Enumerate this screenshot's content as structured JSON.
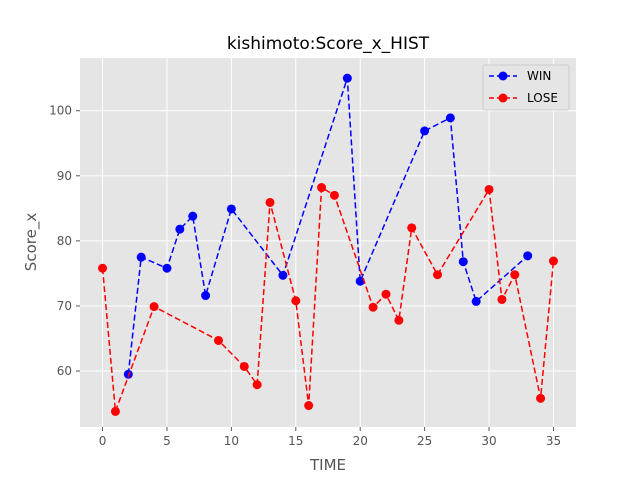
{
  "chart_data": {
    "type": "line",
    "title": "kishimoto:Score_x_HIST",
    "xlabel": "TIME",
    "ylabel": "Score_x",
    "xlim": [
      -1.75,
      36.75
    ],
    "ylim": [
      51.4,
      108.1
    ],
    "xticks": [
      0,
      5,
      10,
      15,
      20,
      25,
      30,
      35
    ],
    "yticks": [
      60,
      70,
      80,
      90,
      100
    ],
    "grid": true,
    "legend_position": "top-right",
    "style": "ggplot",
    "series": [
      {
        "name": "WIN",
        "color": "#0000ff",
        "line_style": "dashed",
        "marker": "circle",
        "x": [
          2,
          3,
          5,
          6,
          7,
          8,
          10,
          14,
          19,
          20,
          25,
          27,
          28,
          29,
          33
        ],
        "y": [
          59.5,
          77.5,
          75.8,
          81.8,
          83.8,
          71.6,
          84.9,
          74.7,
          105.0,
          73.8,
          96.9,
          98.9,
          76.8,
          70.7,
          77.7
        ]
      },
      {
        "name": "LOSE",
        "color": "#ff0000",
        "line_style": "dashed",
        "marker": "circle",
        "x": [
          0,
          1,
          4,
          9,
          11,
          12,
          13,
          15,
          16,
          17,
          18,
          21,
          22,
          23,
          24,
          26,
          30,
          31,
          32,
          34,
          35
        ],
        "y": [
          75.8,
          53.8,
          69.9,
          64.7,
          60.7,
          57.9,
          85.9,
          70.8,
          54.7,
          88.2,
          87.0,
          69.8,
          71.8,
          67.8,
          82.0,
          74.8,
          87.9,
          71.0,
          74.8,
          55.8,
          76.9
        ]
      }
    ]
  }
}
